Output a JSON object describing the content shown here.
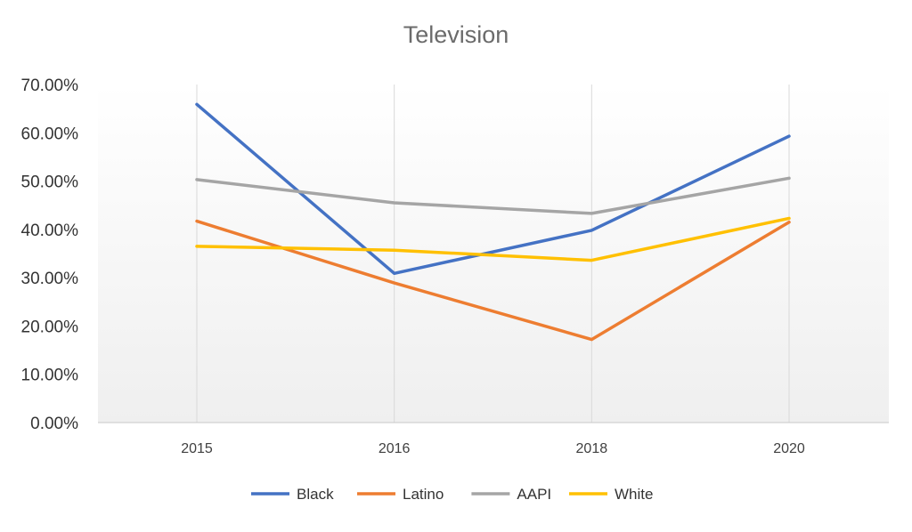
{
  "chart_data": {
    "type": "line",
    "title": "Television",
    "categories": [
      "2015",
      "2016",
      "2018",
      "2020"
    ],
    "ylim": [
      0,
      0.7
    ],
    "yticks": [
      "0.00%",
      "10.00%",
      "20.00%",
      "30.00%",
      "40.00%",
      "50.00%",
      "60.00%",
      "70.00%"
    ],
    "grid": "vertical",
    "legend_position": "bottom",
    "series": [
      {
        "name": "Black",
        "color": "#4472C4",
        "values": [
          0.659,
          0.309,
          0.398,
          0.593
        ]
      },
      {
        "name": "Latino",
        "color": "#ED7D31",
        "values": [
          0.417,
          0.289,
          0.172,
          0.415
        ]
      },
      {
        "name": "AAPI",
        "color": "#A5A5A5",
        "values": [
          0.503,
          0.455,
          0.433,
          0.506
        ]
      },
      {
        "name": "White",
        "color": "#FFC000",
        "values": [
          0.365,
          0.357,
          0.336,
          0.423
        ]
      }
    ]
  }
}
